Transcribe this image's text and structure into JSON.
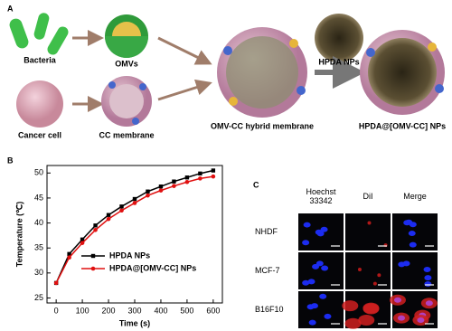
{
  "panel_a": {
    "label": "A",
    "items": [
      "Bacteria",
      "OMVs",
      "Cancer cell",
      "CC membrane",
      "OMV-CC hybrid membrane",
      "HPDA NPs",
      "HPDA@[OMV-CC] NPs"
    ]
  },
  "chart_data": {
    "type": "line",
    "panel_label": "B",
    "x_label": "Time (s)",
    "y_label": "Temperature (℃)",
    "x": [
      0,
      50,
      100,
      150,
      200,
      250,
      300,
      350,
      400,
      450,
      500,
      550,
      600
    ],
    "series": [
      {
        "name": "HPDA NPs",
        "color": "#000000",
        "marker": "square",
        "values": [
          28,
          33.8,
          36.7,
          39.5,
          41.6,
          43.3,
          44.8,
          46.3,
          47.3,
          48.3,
          49.1,
          49.9,
          50.5
        ]
      },
      {
        "name": "HPDA@[OMV-CC] NPs",
        "color": "#e01010",
        "marker": "circle",
        "values": [
          28,
          33.1,
          36.0,
          38.6,
          40.8,
          42.5,
          44.0,
          45.5,
          46.5,
          47.4,
          48.2,
          48.9,
          49.3
        ]
      }
    ],
    "xlim": [
      -35,
      635
    ],
    "ylim": [
      24,
      51.5
    ],
    "xticks": [
      0,
      100,
      200,
      300,
      400,
      500,
      600
    ],
    "yticks": [
      25,
      30,
      35,
      40,
      45,
      50
    ],
    "legend": "lower right"
  },
  "panel_c": {
    "label": "C",
    "columns": [
      "Hoechst 33342",
      "DiI",
      "Merge"
    ],
    "rows": [
      "NHDF",
      "MCF-7",
      "B16F10"
    ]
  }
}
